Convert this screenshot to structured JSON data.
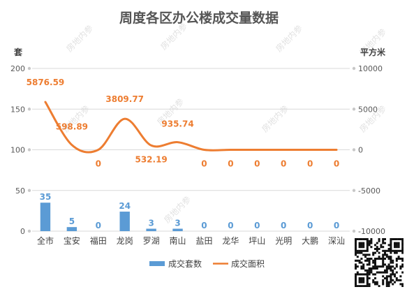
{
  "chart_data": {
    "type": "bar+line",
    "title": "周度各区办公楼成交量数据",
    "y_left_unit": "套",
    "y_right_unit": "平方米",
    "categories": [
      "全市",
      "宝安",
      "福田",
      "龙岗",
      "罗湖",
      "南山",
      "盐田",
      "龙华",
      "坪山",
      "光明",
      "大鹏",
      "深汕"
    ],
    "y_left_ticks": [
      "0",
      "50",
      "100",
      "150",
      "200"
    ],
    "y_right_ticks": [
      "-10000",
      "-5000",
      "0",
      "5000",
      "10000"
    ],
    "ylim_left": [
      0,
      200
    ],
    "ylim_right": [
      -10000,
      10000
    ],
    "series": [
      {
        "name": "成交套数",
        "type": "bar",
        "axis": "left",
        "color": "#5b9bd5",
        "values": [
          35,
          5,
          0,
          24,
          3,
          3,
          0,
          0,
          0,
          0,
          0,
          0
        ],
        "labels": [
          "35",
          "5",
          "0",
          "24",
          "3",
          "3",
          "0",
          "0",
          "0",
          "0",
          "0",
          "0"
        ]
      },
      {
        "name": "成交面积",
        "type": "line",
        "axis": "right",
        "color": "#ed7d31",
        "values": [
          5876.59,
          598.89,
          0,
          3809.77,
          532.19,
          935.74,
          0,
          0,
          0,
          0,
          0,
          0
        ],
        "labels": [
          "5876.59",
          "598.89",
          "0",
          "3809.77",
          "532.19",
          "935.74",
          "0",
          "0",
          "0",
          "0",
          "0",
          "0"
        ]
      }
    ],
    "legend_position": "bottom",
    "grid": true
  },
  "watermark": "房地内参",
  "qr_code": "qr-code"
}
